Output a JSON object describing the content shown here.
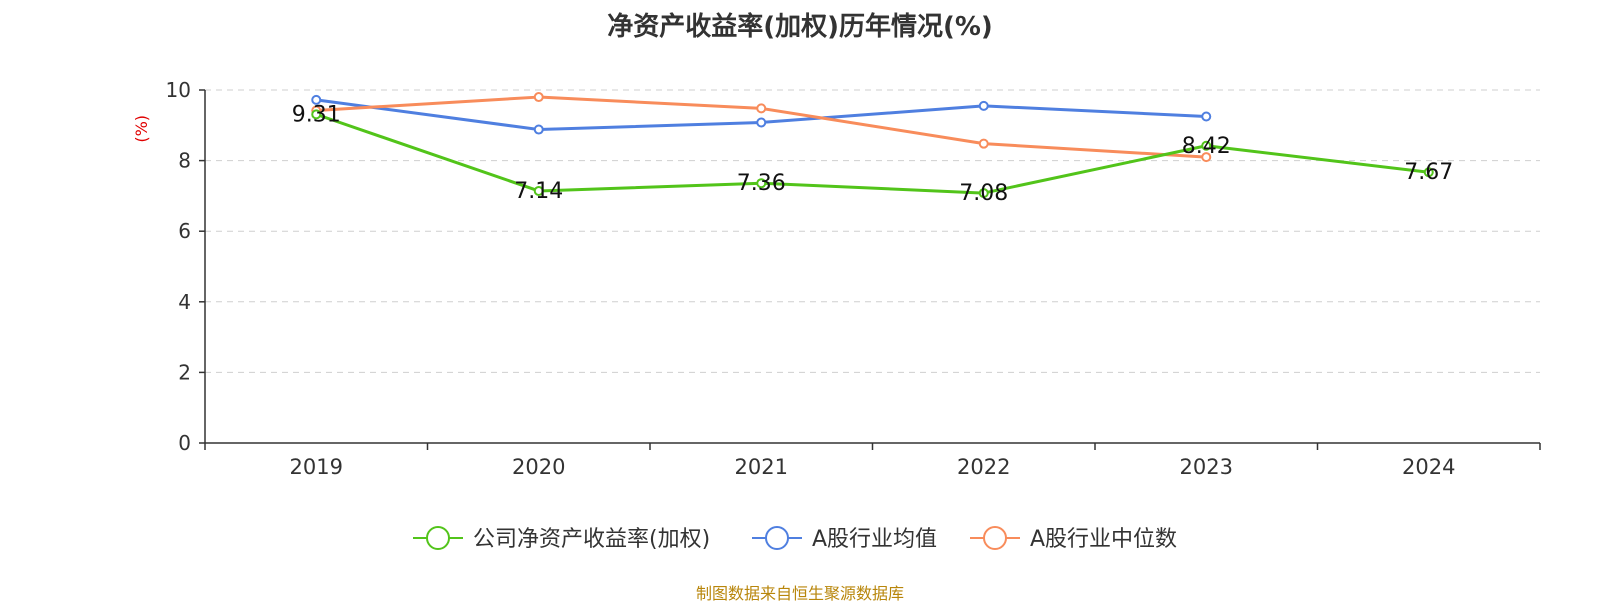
{
  "chart_data": {
    "type": "line",
    "title": "净资产收益率(加权)历年情况(%)",
    "ylabel": "(%)",
    "xlabel": "",
    "categories": [
      "2019",
      "2020",
      "2021",
      "2022",
      "2023",
      "2024"
    ],
    "ylim": [
      0,
      10
    ],
    "yticks": [
      0,
      2,
      4,
      6,
      8,
      10
    ],
    "grid": true,
    "legend_position": "bottom",
    "series": [
      {
        "name": "公司净资产收益率(加权)",
        "color": "#52c41a",
        "values": [
          9.31,
          7.14,
          7.36,
          7.08,
          8.42,
          7.67
        ],
        "show_labels": true
      },
      {
        "name": "A股行业均值",
        "color": "#4f7fe0",
        "values": [
          9.72,
          8.88,
          9.08,
          9.55,
          9.25,
          null
        ],
        "show_labels": false
      },
      {
        "name": "A股行业中位数",
        "color": "#f88c5b",
        "values": [
          9.42,
          9.8,
          9.48,
          8.48,
          8.1,
          null
        ],
        "show_labels": false
      }
    ]
  },
  "footer": {
    "source": "制图数据来自恒生聚源数据库"
  }
}
